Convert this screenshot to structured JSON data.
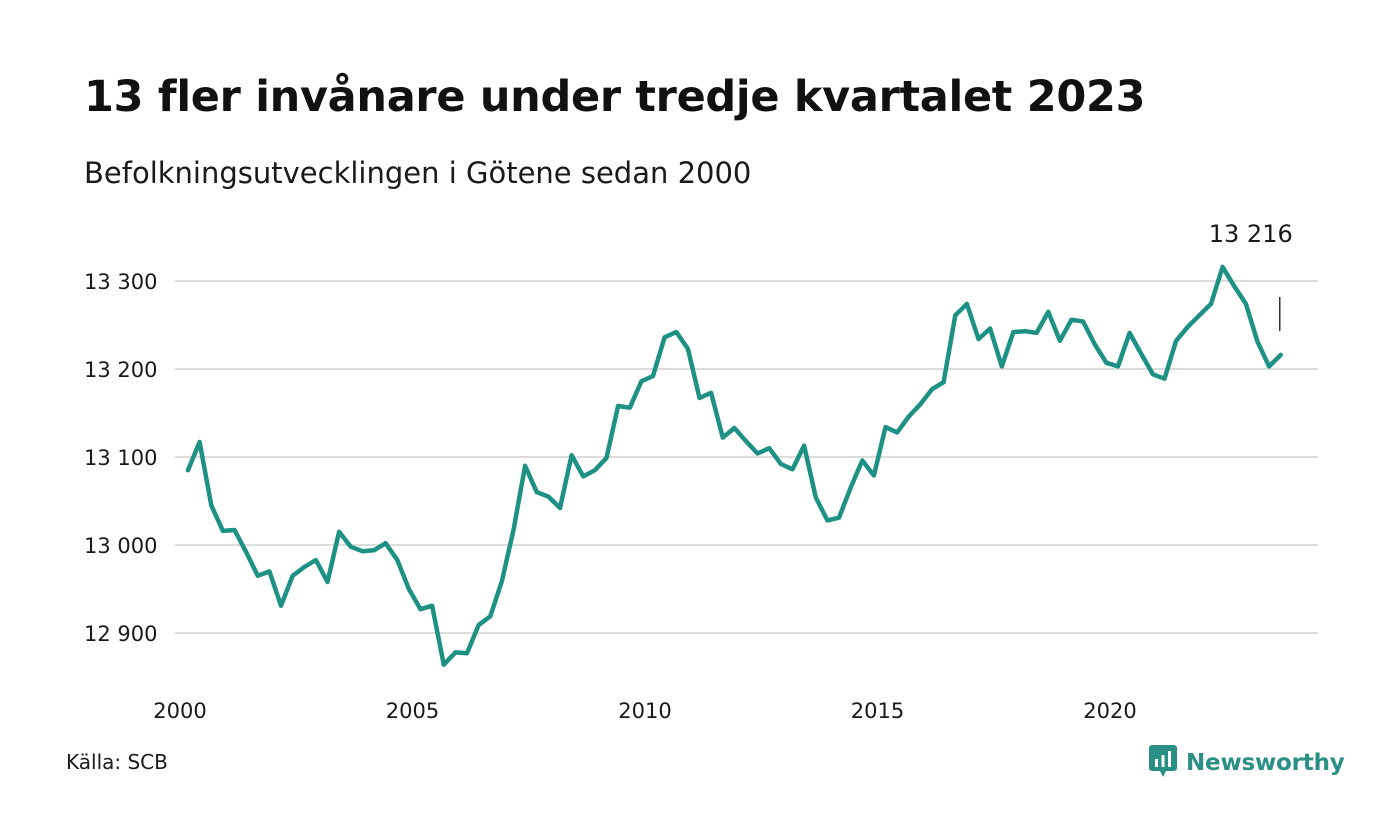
{
  "title": "13 fler invånare under tredje kvartalet 2023",
  "subtitle": "Befolkningsutvecklingen i Götene sedan 2000",
  "source": "Källa: SCB",
  "brand": {
    "name": "Newsworthy",
    "icon": "newsworthy-logo-icon",
    "color": "#2a8f84"
  },
  "chart_data": {
    "type": "line",
    "title": "13 fler invånare under tredje kvartalet 2023",
    "subtitle": "Befolkningsutvecklingen i Götene sedan 2000",
    "xlabel": "",
    "ylabel": "",
    "grid": true,
    "line_color": "#1e9185",
    "xlim": [
      2000,
      2024
    ],
    "ylim": [
      12880,
      13330
    ],
    "x_ticks": [
      2000,
      2005,
      2010,
      2015,
      2020
    ],
    "x_tick_labels": [
      "2000",
      "2005",
      "2010",
      "2015",
      "2020"
    ],
    "y_ticks": [
      12900,
      13000,
      13100,
      13200,
      13300
    ],
    "y_tick_labels": [
      "12 900",
      "13 000",
      "13 100",
      "13 200",
      "13 300"
    ],
    "last_value_label": "13 216",
    "series": [
      {
        "values": [
          13085,
          13117,
          13045,
          13016,
          13017,
          12992,
          12965,
          12970,
          12931,
          12965,
          12975,
          12983,
          12958,
          13015,
          12998,
          12993,
          12994,
          13002,
          12983,
          12950,
          12927,
          12931,
          12864,
          12878,
          12877,
          12909,
          12919,
          12959,
          13017,
          13090,
          13060,
          13055,
          13042,
          13102,
          13078,
          13085,
          13099,
          13158,
          13156,
          13186,
          13192,
          13236,
          13242,
          13223,
          13167,
          13173,
          13122,
          13133,
          13118,
          13104,
          13110,
          13092,
          13086,
          13113,
          13054,
          13028,
          13031,
          13065,
          13096,
          13079,
          13134,
          13128,
          13146,
          13160,
          13177,
          13185,
          13261,
          13274,
          13234,
          13246,
          13203,
          13242,
          13243,
          13241,
          13265,
          13232,
          13256,
          13254,
          13228,
          13207,
          13203,
          13241,
          13217,
          13194,
          13189,
          13232,
          13248,
          13261,
          13274,
          13316,
          13294,
          13274,
          13231,
          13203,
          13216
        ]
      }
    ]
  }
}
